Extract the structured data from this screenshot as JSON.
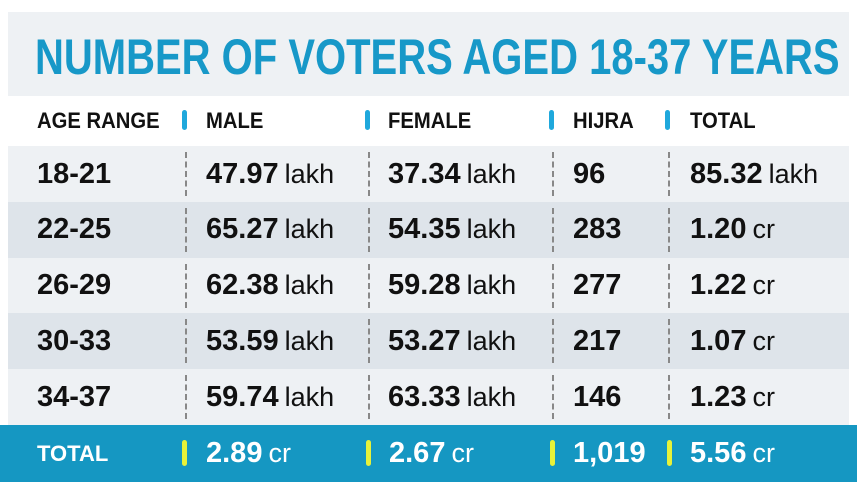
{
  "title": "NUMBER OF VOTERS AGED 18-37 YEARS",
  "headers": [
    "AGE RANGE",
    "MALE",
    "FEMALE",
    "HIJRA",
    "TOTAL"
  ],
  "rows": [
    {
      "age": "18-21",
      "male": "47.97",
      "male_u": "lakh",
      "female": "37.34",
      "female_u": "lakh",
      "hijra": "96",
      "total": "85.32",
      "total_u": "lakh"
    },
    {
      "age": "22-25",
      "male": "65.27",
      "male_u": "lakh",
      "female": "54.35",
      "female_u": "lakh",
      "hijra": "283",
      "total": "1.20",
      "total_u": "cr"
    },
    {
      "age": "26-29",
      "male": "62.38",
      "male_u": "lakh",
      "female": "59.28",
      "female_u": "lakh",
      "hijra": "277",
      "total": "1.22",
      "total_u": "cr"
    },
    {
      "age": "30-33",
      "male": "53.59",
      "male_u": "lakh",
      "female": "53.27",
      "female_u": "lakh",
      "hijra": "217",
      "total": "1.07",
      "total_u": "cr"
    },
    {
      "age": "34-37",
      "male": "59.74",
      "male_u": "lakh",
      "female": "63.33",
      "female_u": "lakh",
      "hijra": "146",
      "total": "1.23",
      "total_u": "cr"
    }
  ],
  "total_row": {
    "label": "TOTAL",
    "male": "2.89",
    "male_u": "cr",
    "female": "2.67",
    "female_u": "cr",
    "hijra": "1,019",
    "total": "5.56",
    "total_u": "cr"
  },
  "colors": {
    "accent": "#1597c2",
    "separator_total": "#e6f23a",
    "separator_header": "#1fa8dc"
  }
}
